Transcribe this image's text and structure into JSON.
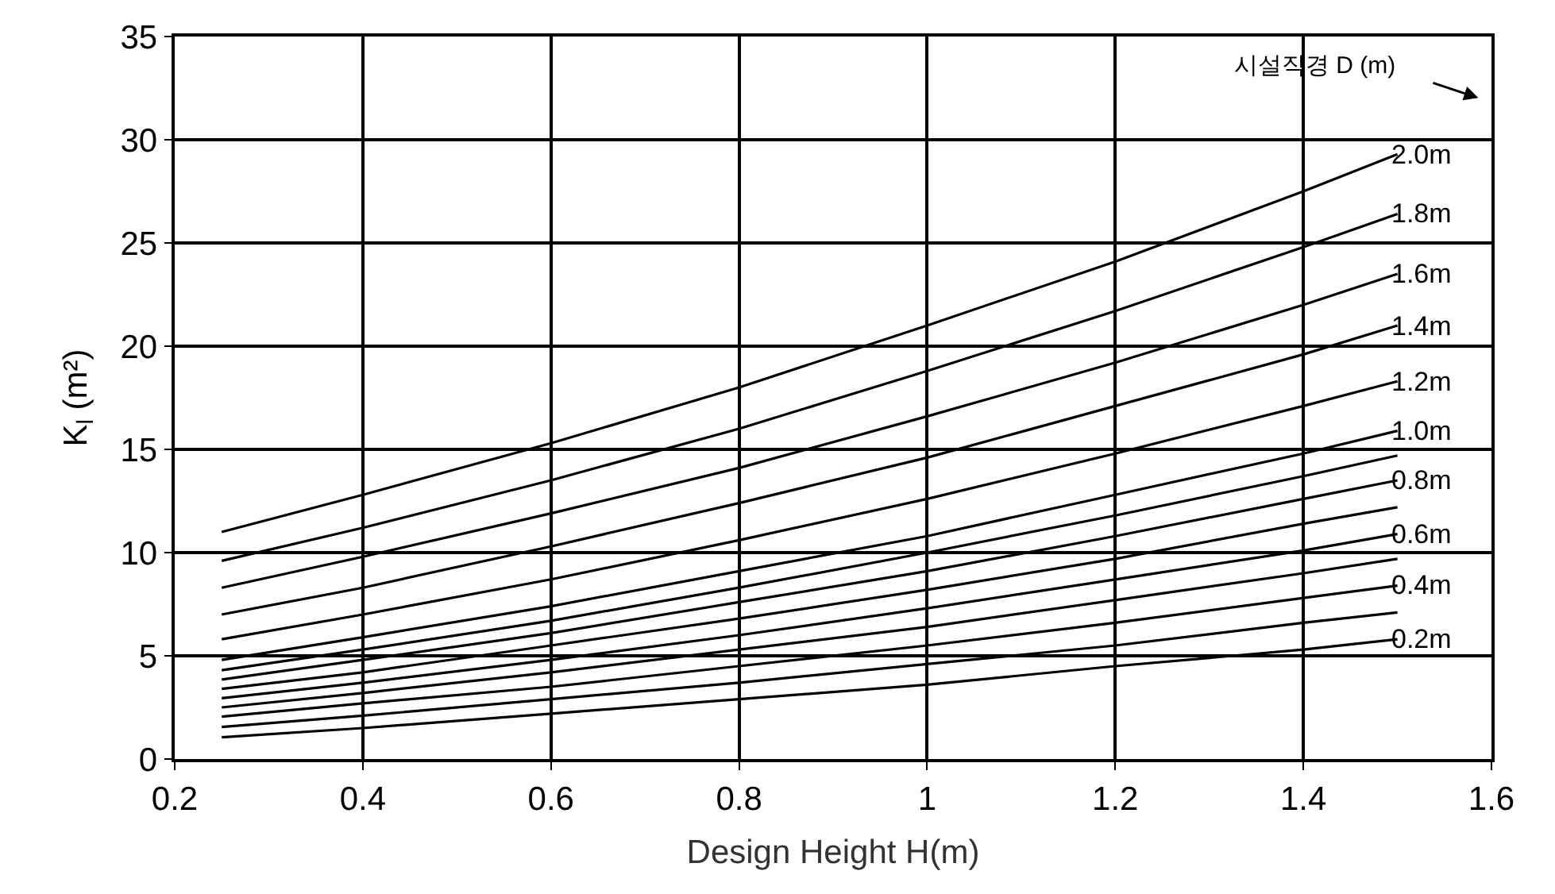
{
  "chart_data": {
    "type": "line",
    "xlabel": "Design Height H(m)",
    "ylabel": "K$_{l}$ (m²)",
    "x": [
      0.25,
      0.4,
      0.6,
      0.8,
      1.0,
      1.2,
      1.4,
      1.5
    ],
    "xlim": [
      0.2,
      1.6
    ],
    "xticks": [
      0.2,
      0.4,
      0.6,
      0.8,
      1,
      1.2,
      1.4,
      1.6
    ],
    "ylim": [
      0,
      35
    ],
    "yticks": [
      0,
      5,
      10,
      15,
      20,
      25,
      30,
      35
    ],
    "grid": true,
    "legend": false,
    "marker": "none",
    "line_style": "solid",
    "annotations": [
      "시설직경 D (m)"
    ],
    "series": [
      {
        "name": "2.0m",
        "color": "#000000",
        "values": [
          11.0,
          12.8,
          15.3,
          18.0,
          21.0,
          24.1,
          27.5,
          29.3
        ]
      },
      {
        "name": "1.8m",
        "color": "#000000",
        "values": [
          9.6,
          11.2,
          13.5,
          16.0,
          18.8,
          21.7,
          24.8,
          26.4
        ]
      },
      {
        "name": "1.6m",
        "color": "#000000",
        "values": [
          8.3,
          9.8,
          11.9,
          14.1,
          16.6,
          19.2,
          22.0,
          23.5
        ]
      },
      {
        "name": "1.4m",
        "color": "#000000",
        "values": [
          7.0,
          8.3,
          10.3,
          12.4,
          14.6,
          17.1,
          19.6,
          21.0
        ]
      },
      {
        "name": "1.2m",
        "color": "#000000",
        "values": [
          5.8,
          7.0,
          8.7,
          10.6,
          12.6,
          14.8,
          17.1,
          18.3
        ]
      },
      {
        "name": "1.0m",
        "color": "#000000",
        "values": [
          4.8,
          5.9,
          7.4,
          9.1,
          10.8,
          12.8,
          14.8,
          15.9
        ]
      },
      {
        "color": "#000000",
        "values": [
          4.3,
          5.3,
          6.7,
          8.3,
          10.0,
          11.8,
          13.7,
          14.7
        ]
      },
      {
        "name": "0.8m",
        "color": "#000000",
        "values": [
          3.85,
          4.8,
          6.1,
          7.6,
          9.1,
          10.8,
          12.6,
          13.5
        ]
      },
      {
        "color": "#000000",
        "values": [
          3.4,
          4.2,
          5.5,
          6.8,
          8.2,
          9.7,
          11.4,
          12.2
        ]
      },
      {
        "name": "0.6m",
        "color": "#000000",
        "values": [
          2.95,
          3.7,
          4.8,
          6.0,
          7.3,
          8.7,
          10.1,
          10.9
        ]
      },
      {
        "color": "#000000",
        "values": [
          2.5,
          3.2,
          4.2,
          5.3,
          6.4,
          7.7,
          9.0,
          9.7
        ]
      },
      {
        "name": "0.4m",
        "color": "#000000",
        "values": [
          2.05,
          2.7,
          3.5,
          4.5,
          5.5,
          6.6,
          7.8,
          8.4
        ]
      },
      {
        "color": "#000000",
        "values": [
          1.55,
          2.1,
          2.9,
          3.7,
          4.6,
          5.5,
          6.6,
          7.1
        ]
      },
      {
        "name": "0.2m",
        "color": "#000000",
        "values": [
          1.05,
          1.5,
          2.2,
          2.9,
          3.6,
          4.5,
          5.3,
          5.8
        ]
      }
    ]
  }
}
